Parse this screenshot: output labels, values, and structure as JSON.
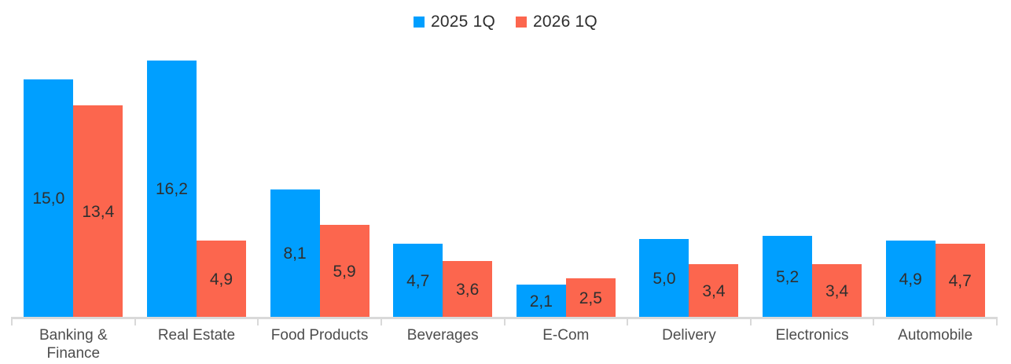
{
  "chart_data": {
    "type": "bar",
    "title": "",
    "xlabel": "",
    "ylabel": "",
    "categories": [
      "Banking & Finance",
      "Real Estate",
      "Food Products",
      "Beverages",
      "E-Com",
      "Delivery",
      "Electronics",
      "Automobile"
    ],
    "series": [
      {
        "name": "2025 1Q",
        "color": "#009fff",
        "values": [
          15.0,
          16.2,
          8.1,
          4.7,
          2.1,
          5.0,
          5.2,
          4.9
        ]
      },
      {
        "name": "2026 1Q",
        "color": "#fc664e",
        "values": [
          13.4,
          4.9,
          5.9,
          3.6,
          2.5,
          3.4,
          3.4,
          4.7
        ]
      }
    ],
    "value_label_format": "one_decimal_comma",
    "decimal_separator": ",",
    "legend_position": "top-center",
    "grid": false,
    "y_axis_visible": false,
    "ylim": [
      0,
      20
    ]
  },
  "style": {
    "axis_color": "#d9d9d9",
    "value_label_color": "#2f2f2f",
    "category_label_color": "#4d4d4d",
    "legend_text_color": "#2e2e2e",
    "background": "#ffffff"
  }
}
